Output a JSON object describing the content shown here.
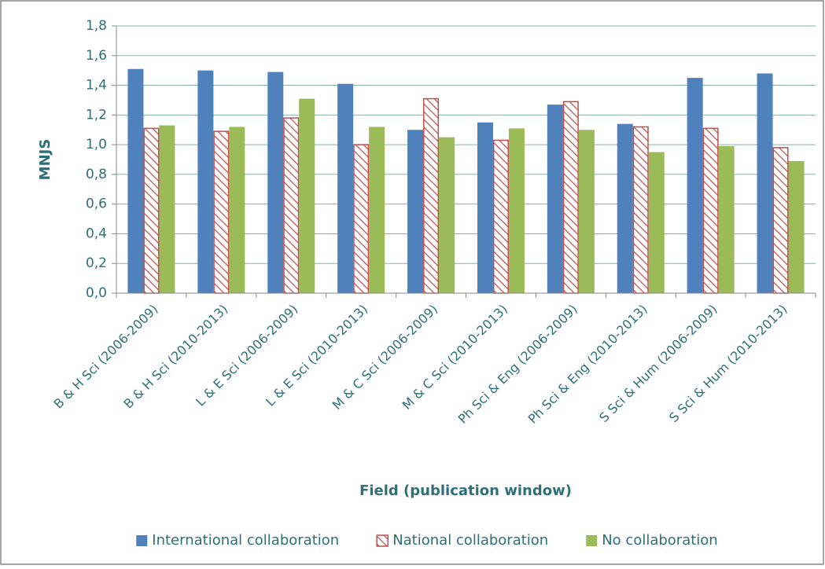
{
  "chart_data": {
    "type": "bar",
    "y_label": "MNJS",
    "x_label": "Field (publication window)",
    "categories": [
      "B & H Sci (2006-2009)",
      "B & H Sci (2010-2013)",
      "L & E Sci (2006-2009)",
      "L & E Sci (2010-2013)",
      "M & C Sci (2006-2009)",
      "M & C Sci (2010-2013)",
      "Ph Sci & Eng (2006-2009)",
      "Ph Sci & Eng (2010-2013)",
      "S Sci & Hum (2006-2009)",
      "S Sci & Hum (2010-2013)"
    ],
    "series": [
      {
        "name": "International collaboration",
        "color": "#4f81bd",
        "values": [
          1.51,
          1.5,
          1.49,
          1.41,
          1.1,
          1.15,
          1.27,
          1.14,
          1.45,
          1.48
        ]
      },
      {
        "name": "National collaboration",
        "color": "#c0504d",
        "pattern": "diagonal-hatch",
        "values": [
          1.11,
          1.09,
          1.18,
          1.0,
          1.31,
          1.03,
          1.29,
          1.12,
          1.11,
          0.98
        ]
      },
      {
        "name": "No collaboration",
        "color": "#9bbb59",
        "values": [
          1.13,
          1.12,
          1.31,
          1.12,
          1.05,
          1.11,
          1.1,
          0.95,
          0.99,
          0.89
        ]
      }
    ],
    "ylim": [
      0,
      1.8
    ],
    "yticks": [
      {
        "value": 0,
        "label": "0,0"
      },
      {
        "value": 0.2,
        "label": "0,2"
      },
      {
        "value": 0.4,
        "label": "0,4"
      },
      {
        "value": 0.6,
        "label": "0,6"
      },
      {
        "value": 0.8,
        "label": "0,8"
      },
      {
        "value": 1.0,
        "label": "1,0"
      },
      {
        "value": 1.2,
        "label": "1,2"
      },
      {
        "value": 1.4,
        "label": "1,4"
      },
      {
        "value": 1.6,
        "label": "1,6"
      },
      {
        "value": 1.8,
        "label": "1,8"
      }
    ],
    "grid": true,
    "legend": "bottom"
  }
}
